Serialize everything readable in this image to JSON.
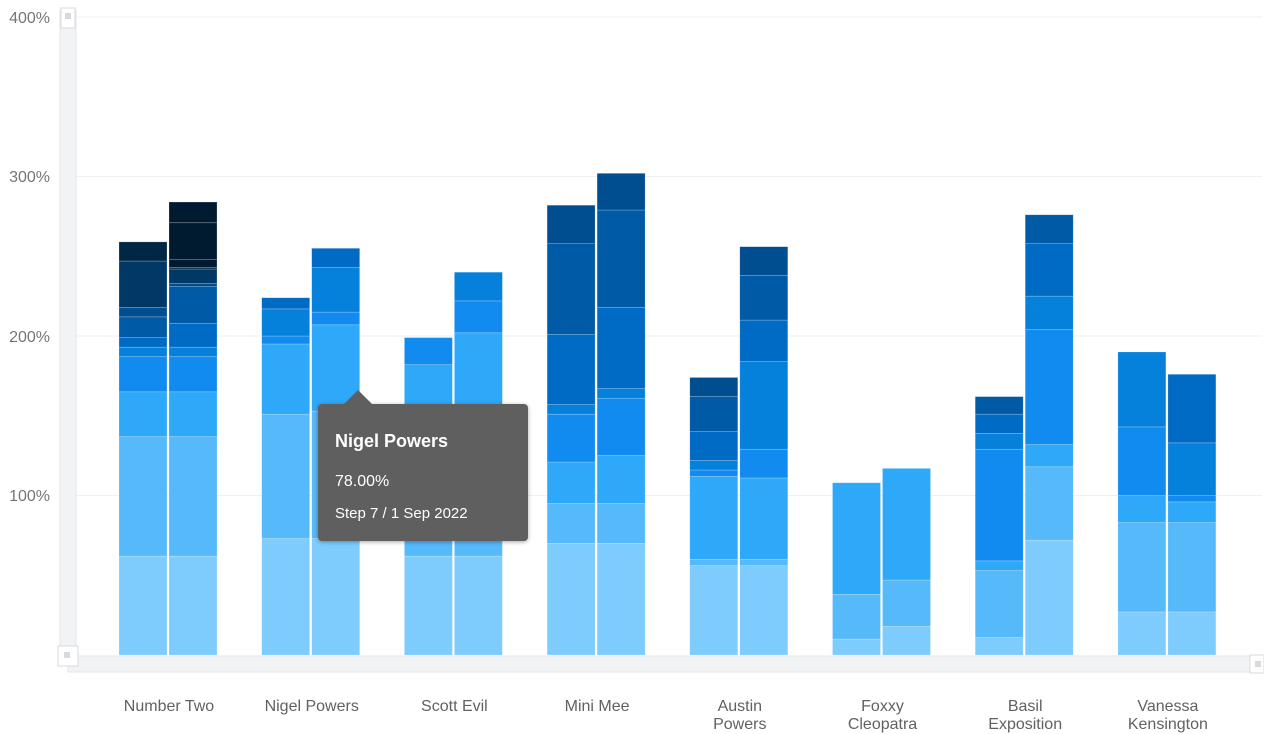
{
  "chart_data": {
    "type": "bar",
    "stacked": true,
    "categories": [
      "Number Two",
      "Nigel Powers",
      "Scott Evil",
      "Mini Mee",
      "Austin Powers",
      "Foxxy Cleopatra",
      "Basil Exposition",
      "Vanessa Kensington"
    ],
    "y_ticks": [
      "100%",
      "200%",
      "300%",
      "400%"
    ],
    "ylim": [
      0,
      400
    ],
    "grid": true,
    "colors": [
      "#7ecbfd",
      "#55b9fa",
      "#2ea8f8",
      "#118bf0",
      "#0580db",
      "#006bc4",
      "#005aa6",
      "#004d8f",
      "#003966",
      "#002844",
      "#001a30"
    ],
    "stacks": [
      [
        [
          62,
          75,
          28,
          22,
          6,
          6,
          13,
          6,
          29,
          12
        ],
        [
          62,
          75,
          28,
          22,
          6,
          15,
          23,
          2,
          9,
          1,
          5,
          23,
          13
        ]
      ],
      [
        [
          73,
          78,
          44,
          5,
          17,
          7
        ],
        [
          73,
          80,
          54,
          8,
          28,
          12
        ]
      ],
      [
        [
          62,
          48,
          72,
          17
        ],
        [
          62,
          48,
          92,
          20,
          18
        ]
      ],
      [
        [
          70,
          25,
          26,
          30,
          6,
          44,
          57,
          24
        ],
        [
          70,
          25,
          30,
          36,
          6,
          51,
          61,
          23
        ]
      ],
      [
        [
          56,
          4,
          52,
          4,
          6,
          18,
          22,
          12
        ],
        [
          56,
          4,
          51,
          18,
          55,
          26,
          28,
          18
        ]
      ],
      [
        [
          10,
          28,
          70
        ],
        [
          18,
          29,
          70
        ]
      ],
      [
        [
          11,
          42,
          6,
          70,
          10,
          12,
          11
        ],
        [
          72,
          46,
          14,
          72,
          21,
          33,
          18
        ]
      ],
      [
        [
          27,
          56,
          17,
          43,
          47
        ],
        [
          27,
          56,
          13,
          4,
          33,
          43
        ]
      ]
    ]
  },
  "tooltip": {
    "title": "Nigel Powers",
    "value": "78.00%",
    "detail": "Step 7 / 1 Sep 2022"
  }
}
